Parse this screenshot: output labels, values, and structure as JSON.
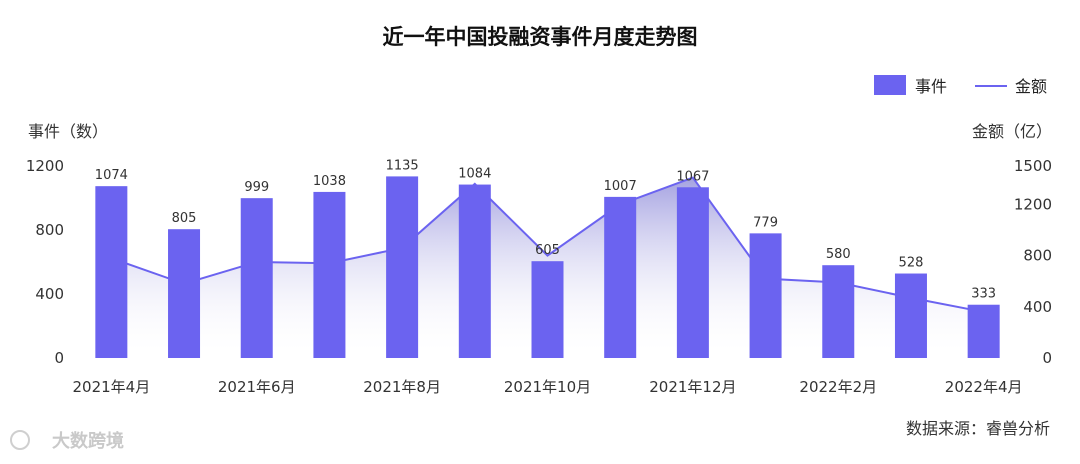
{
  "chart_data": {
    "type": "bar",
    "title": "近一年中国投融资事件月度走势图",
    "categories": [
      "2021年4月",
      "2021年5月",
      "2021年6月",
      "2021年7月",
      "2021年8月",
      "2021年9月",
      "2021年10月",
      "2021年11月",
      "2021年12月",
      "2022年1月",
      "2022年2月",
      "2022年3月",
      "2022年4月"
    ],
    "shown_x_ticks": [
      "2021年4月",
      "2021年6月",
      "2021年8月",
      "2021年10月",
      "2021年12月",
      "2022年2月",
      "2022年4月"
    ],
    "series": [
      {
        "name": "事件",
        "type": "bar",
        "axis": "left",
        "color": "#6b63f0",
        "values": [
          1074,
          805,
          999,
          1038,
          1135,
          1084,
          605,
          1007,
          1067,
          779,
          580,
          528,
          333
        ]
      },
      {
        "name": "金额",
        "type": "area",
        "axis": "right",
        "color": "#6b63f0",
        "values": [
          780,
          580,
          750,
          740,
          860,
          1360,
          800,
          1200,
          1410,
          620,
          590,
          470,
          360
        ]
      }
    ],
    "ylabel_left": "事件（数）",
    "ylabel_right": "金额（亿）",
    "ylim_left": [
      0,
      1200
    ],
    "yticks_left": [
      0,
      400,
      800,
      1200
    ],
    "ylim_right": [
      0,
      1500
    ],
    "yticks_right": [
      0,
      400,
      800,
      1200,
      1500
    ],
    "legend_position": "top-right",
    "grid": false
  },
  "source": "数据来源：睿兽分析",
  "watermark": "大数跨境"
}
